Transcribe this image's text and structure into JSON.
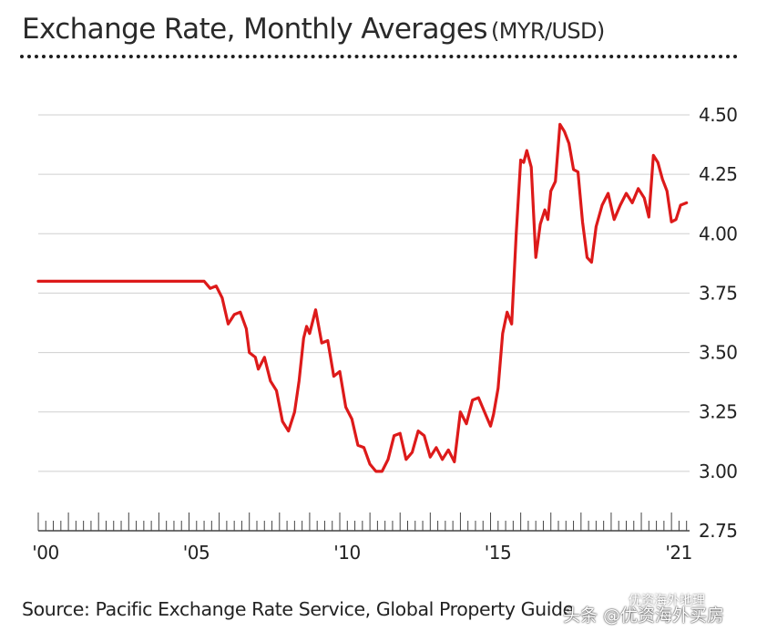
{
  "header": {
    "title_main": "Exchange Rate, Monthly Averages",
    "title_unit": "(MYR/USD)"
  },
  "footer": {
    "source": "Source: Pacific Exchange Rate Service, Global Property Guide",
    "watermark": "头条 @优资海外买房",
    "watermark_top": "优资海外地理"
  },
  "colors": {
    "line": "#dd1a1a",
    "grid": "#cfcfcf",
    "axis": "#444444",
    "text": "#222222"
  },
  "chart_data": {
    "type": "line",
    "title": "Exchange Rate, Monthly Averages (MYR/USD)",
    "xlabel": "",
    "ylabel": "",
    "xlim": [
      2000.0,
      2021.6
    ],
    "ylim": [
      2.75,
      4.5
    ],
    "y_ticks": [
      2.75,
      3.0,
      3.25,
      3.5,
      3.75,
      4.0,
      4.25,
      4.5
    ],
    "y_tick_labels": [
      "2.75",
      "3.00",
      "3.25",
      "3.50",
      "3.75",
      "4.00",
      "4.25",
      "4.50"
    ],
    "x_ticks": [
      2000,
      2005,
      2010,
      2015,
      2021
    ],
    "x_tick_labels": [
      "'00",
      "'05",
      "'10",
      "'15",
      "'21"
    ],
    "grid": true,
    "series": [
      {
        "name": "MYR/USD",
        "x": [
          2000.0,
          2005.5,
          2005.7,
          2005.9,
          2006.1,
          2006.3,
          2006.5,
          2006.7,
          2006.9,
          2007.0,
          2007.2,
          2007.3,
          2007.5,
          2007.7,
          2007.9,
          2008.1,
          2008.3,
          2008.5,
          2008.65,
          2008.8,
          2008.9,
          2009.0,
          2009.2,
          2009.4,
          2009.6,
          2009.8,
          2010.0,
          2010.2,
          2010.4,
          2010.6,
          2010.8,
          2011.0,
          2011.2,
          2011.4,
          2011.6,
          2011.8,
          2012.0,
          2012.2,
          2012.4,
          2012.6,
          2012.8,
          2013.0,
          2013.2,
          2013.4,
          2013.6,
          2013.8,
          2014.0,
          2014.2,
          2014.4,
          2014.6,
          2014.8,
          2015.0,
          2015.1,
          2015.25,
          2015.4,
          2015.55,
          2015.7,
          2015.85,
          2016.0,
          2016.1,
          2016.2,
          2016.35,
          2016.5,
          2016.65,
          2016.8,
          2016.9,
          2017.0,
          2017.15,
          2017.3,
          2017.45,
          2017.6,
          2017.75,
          2017.9,
          2018.05,
          2018.2,
          2018.35,
          2018.5,
          2018.7,
          2018.9,
          2019.1,
          2019.3,
          2019.5,
          2019.7,
          2019.9,
          2020.1,
          2020.25,
          2020.4,
          2020.55,
          2020.7,
          2020.85,
          2021.0,
          2021.15,
          2021.3,
          2021.5
        ],
        "values": [
          3.8,
          3.8,
          3.77,
          3.78,
          3.73,
          3.62,
          3.66,
          3.67,
          3.6,
          3.5,
          3.48,
          3.43,
          3.48,
          3.38,
          3.34,
          3.21,
          3.17,
          3.25,
          3.38,
          3.56,
          3.61,
          3.58,
          3.68,
          3.54,
          3.55,
          3.4,
          3.42,
          3.27,
          3.22,
          3.11,
          3.1,
          3.03,
          3.0,
          3.0,
          3.05,
          3.15,
          3.16,
          3.05,
          3.08,
          3.17,
          3.15,
          3.06,
          3.1,
          3.05,
          3.09,
          3.04,
          3.25,
          3.2,
          3.3,
          3.31,
          3.25,
          3.19,
          3.24,
          3.35,
          3.58,
          3.67,
          3.62,
          4.0,
          4.31,
          4.3,
          4.35,
          4.28,
          3.9,
          4.04,
          4.1,
          4.06,
          4.18,
          4.22,
          4.46,
          4.43,
          4.38,
          4.27,
          4.26,
          4.05,
          3.9,
          3.88,
          4.03,
          4.12,
          4.17,
          4.06,
          4.12,
          4.17,
          4.13,
          4.19,
          4.15,
          4.07,
          4.33,
          4.3,
          4.23,
          4.18,
          4.05,
          4.06,
          4.12,
          4.13
        ]
      }
    ]
  }
}
